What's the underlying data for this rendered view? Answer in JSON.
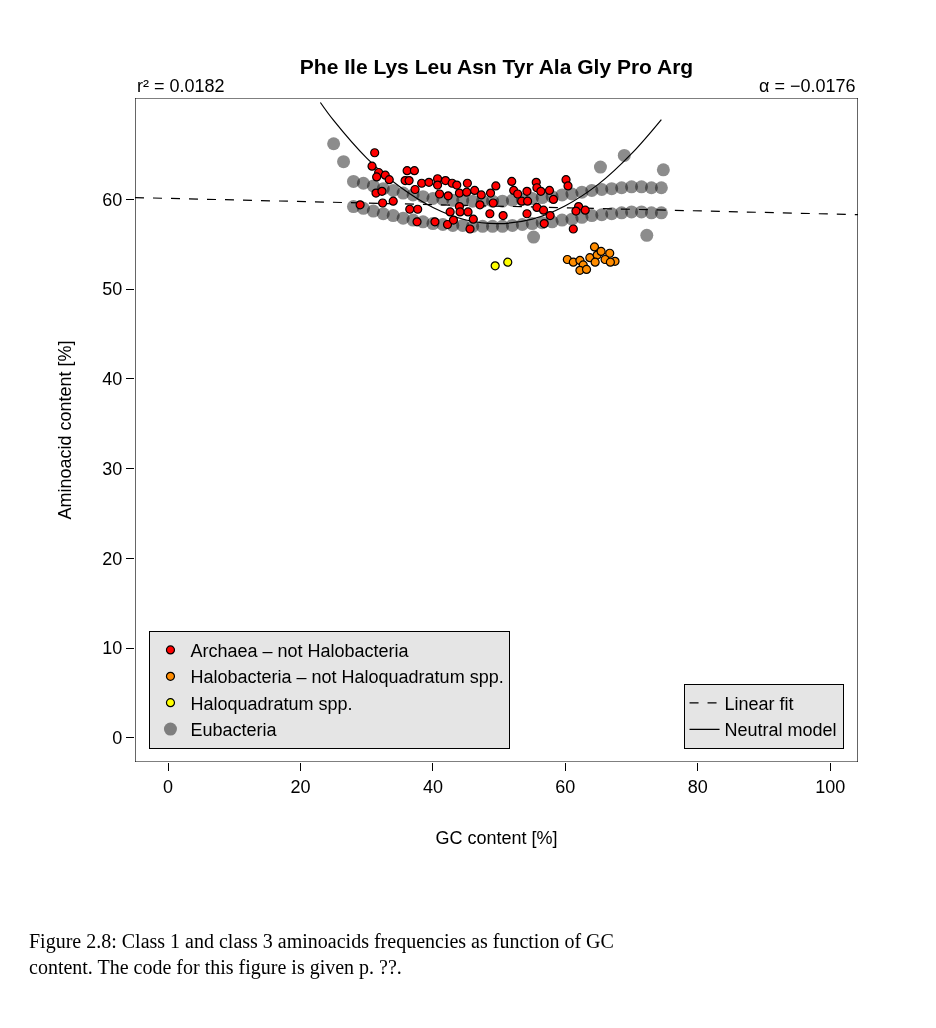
{
  "chart_data": {
    "type": "scatter",
    "title": "Phe Ile Lys Leu Asn Tyr Ala Gly Pro Arg",
    "xlabel": "GC content [%]",
    "ylabel": "Aminoacid content [%]",
    "xlim": [
      -5,
      104.2
    ],
    "ylim": [
      -2.7,
      71.3
    ],
    "xticks": [
      0,
      20,
      40,
      60,
      80,
      100
    ],
    "yticks": [
      0,
      10,
      20,
      30,
      40,
      50,
      60
    ],
    "legend": "bottom left",
    "marker": "circle",
    "annotations": [
      "r² = 0.0182",
      "α = −0.0176",
      "Figure 2.8: Class 1 and class 3 aminoacids frequencies as function of GC content. The code for this figure is given p. ??."
    ],
    "series": [
      {
        "name": "Archaea – not Halobacteria",
        "color": "#ff0000",
        "x": [
          31.2,
          30.8,
          31.8,
          31.5,
          32.8,
          33.4,
          36.1,
          37.2,
          35.8,
          36.4,
          37.3,
          38.3,
          39.4,
          40.7,
          41.9,
          40.7,
          42.9,
          43.6,
          45.2,
          41.0,
          42.3,
          44.0,
          45.1,
          46.3,
          47.3,
          48.7,
          49.5,
          51.9,
          52.2,
          52.8,
          54.2,
          55.6,
          55.7,
          56.3,
          57.6,
          60.1,
          60.4,
          58.2,
          29.0,
          31.4,
          32.3,
          32.4,
          34.0,
          36.5,
          37.7,
          37.6,
          40.3,
          42.2,
          42.6,
          44.0,
          44.1,
          45.3,
          46.1,
          45.6,
          43.1,
          47.1,
          49.1,
          48.6,
          50.6,
          53.4,
          54.3,
          54.2,
          55.7,
          56.7,
          57.7,
          56.8,
          61.2,
          62.0,
          63.0,
          61.6
        ],
        "values": [
          65.2,
          63.7,
          63.0,
          62.5,
          62.7,
          62.2,
          63.2,
          63.2,
          62.1,
          62.1,
          61.1,
          61.8,
          61.9,
          62.3,
          62.1,
          61.6,
          61.8,
          61.6,
          61.8,
          60.6,
          60.4,
          60.7,
          60.8,
          61.0,
          60.5,
          60.7,
          61.5,
          62.0,
          61.0,
          60.6,
          60.9,
          61.9,
          61.3,
          60.9,
          61.0,
          62.2,
          61.5,
          60.0,
          59.4,
          60.7,
          60.9,
          59.6,
          59.8,
          58.9,
          58.9,
          57.5,
          57.5,
          57.2,
          58.6,
          59.2,
          58.6,
          58.6,
          57.8,
          56.7,
          57.7,
          59.4,
          59.6,
          58.4,
          58.2,
          59.8,
          59.8,
          58.4,
          59.1,
          58.8,
          58.2,
          57.3,
          56.7,
          59.2,
          58.8,
          58.7
        ]
      },
      {
        "name": "Halobacteria – not Haloquadratum spp.",
        "color": "#ff8c00",
        "x": [
          64.4,
          60.3,
          61.2,
          62.2,
          62.7,
          62.2,
          63.2,
          63.7,
          64.8,
          65.4,
          66.7,
          66.0,
          67.5,
          66.8,
          64.5
        ],
        "values": [
          54.7,
          53.3,
          53.0,
          53.2,
          52.7,
          52.1,
          52.2,
          53.5,
          53.8,
          54.2,
          54.0,
          53.3,
          53.1,
          53.0,
          53.0
        ]
      },
      {
        "name": "Haloquadratum spp.",
        "color": "#ffff00",
        "x": [
          49.4,
          51.3
        ],
        "values": [
          52.6,
          53.0
        ]
      },
      {
        "name": "Eubacteria",
        "color": "#000000",
        "x": [
          28,
          29.5,
          31,
          32.5,
          34,
          35.5,
          37,
          38.5,
          40,
          41.5,
          43,
          44.5,
          46,
          47.5,
          49,
          50.5,
          52,
          53.5,
          55,
          56.5,
          58,
          59.5,
          61,
          62.5,
          64,
          65.5,
          67,
          68.5,
          70,
          71.5,
          73,
          74.5,
          28,
          29.5,
          31,
          32.5,
          34,
          35.5,
          37,
          38.5,
          40,
          41.5,
          43,
          44.5,
          46,
          47.5,
          49,
          50.5,
          52,
          53.5,
          55,
          56.5,
          58,
          59.5,
          61,
          62.5,
          64,
          65.5,
          67,
          68.5,
          70,
          71.5,
          73,
          74.5,
          25.0,
          26.5,
          68.9,
          74.8,
          65.3,
          55.2,
          72.3
        ],
        "values": [
          62.0,
          61.8,
          61.5,
          61.2,
          61.0,
          60.7,
          60.5,
          60.3,
          60.1,
          60.0,
          59.9,
          59.9,
          59.8,
          59.8,
          59.8,
          59.8,
          59.9,
          60.0,
          60.1,
          60.2,
          60.3,
          60.5,
          60.6,
          60.8,
          61.0,
          61.1,
          61.2,
          61.3,
          61.4,
          61.4,
          61.3,
          61.3,
          59.2,
          59.0,
          58.7,
          58.4,
          58.2,
          57.9,
          57.7,
          57.5,
          57.3,
          57.2,
          57.1,
          57.1,
          57.0,
          57.0,
          57.0,
          57.0,
          57.1,
          57.2,
          57.3,
          57.4,
          57.5,
          57.7,
          57.8,
          58.0,
          58.2,
          58.3,
          58.4,
          58.5,
          58.6,
          58.6,
          58.5,
          58.5,
          66.2,
          64.2,
          64.9,
          63.3,
          63.6,
          55.8,
          56.0
        ]
      },
      {
        "name": "Linear fit",
        "type": "line",
        "color": "#000000",
        "line_style": "dashed",
        "marker": "none",
        "x": [
          -5,
          104.2
        ],
        "values": [
          60.2,
          58.3
        ]
      },
      {
        "name": "Neutral model",
        "type": "line",
        "color": "#000000",
        "line_style": "solid",
        "marker": "none",
        "x": [
          23,
          25,
          30,
          35,
          40,
          45,
          50,
          55,
          60,
          65,
          70,
          74.5
        ],
        "values": [
          70.8,
          68.8,
          64.6,
          61.4,
          59.1,
          57.7,
          57.3,
          57.8,
          59.3,
          61.7,
          65.1,
          68.9
        ]
      }
    ]
  }
}
